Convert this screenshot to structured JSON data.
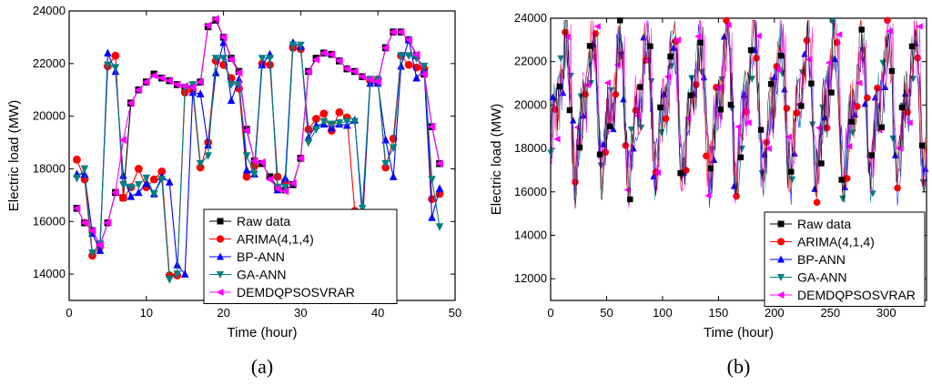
{
  "colors": {
    "raw": "#000000",
    "arima": "#ff0000",
    "bpann": "#0000ff",
    "gaann": "#008080",
    "dem": "#ff00ff"
  },
  "chart_data": [
    {
      "panel_label": "(a)",
      "type": "line",
      "xlabel": "Time (hour)",
      "ylabel": "Electric load (MW)",
      "xlim": [
        0,
        50
      ],
      "ylim": [
        13000,
        24000
      ],
      "xticks": [
        "0",
        "10",
        "20",
        "30",
        "40",
        "50"
      ],
      "yticks": [
        "14000",
        "16000",
        "18000",
        "20000",
        "22000",
        "24000"
      ],
      "legend_position": "bottom-right",
      "x": [
        1,
        2,
        3,
        4,
        5,
        6,
        7,
        8,
        9,
        10,
        11,
        12,
        13,
        14,
        15,
        16,
        17,
        18,
        19,
        20,
        21,
        22,
        23,
        24,
        25,
        26,
        27,
        28,
        29,
        30,
        31,
        32,
        33,
        34,
        35,
        36,
        37,
        38,
        39,
        40,
        41,
        42,
        43,
        44,
        45,
        46,
        47,
        48
      ],
      "series": [
        {
          "name": "Raw data",
          "key": "raw",
          "marker": "square",
          "values": [
            16500,
            15950,
            15650,
            15100,
            15950,
            17100,
            16900,
            20500,
            21000,
            21300,
            21600,
            21450,
            21350,
            21200,
            21100,
            21050,
            21300,
            23400,
            23650,
            23000,
            22200,
            21700,
            19500,
            18300,
            18200,
            17700,
            17300,
            17200,
            17400,
            18400,
            21700,
            22200,
            22400,
            22350,
            22100,
            21800,
            21700,
            21500,
            21400,
            21300,
            22600,
            23200,
            23200,
            22900,
            22300,
            21600,
            19600,
            18200
          ]
        },
        {
          "name": "ARIMA(4,1,4)",
          "key": "arima",
          "marker": "circle",
          "values": [
            18350,
            17600,
            14700,
            15050,
            21900,
            22300,
            16900,
            17300,
            18000,
            17300,
            17600,
            17900,
            13950,
            13950,
            20900,
            21000,
            18050,
            19000,
            22100,
            21950,
            21450,
            21050,
            17700,
            18100,
            22000,
            21950,
            17700,
            17500,
            22600,
            22550,
            19500,
            19900,
            20100,
            19450,
            20150,
            19950,
            16400,
            15800,
            21350,
            21400,
            18050,
            19150,
            22300,
            21950,
            21850,
            21800,
            16850,
            17050
          ]
        },
        {
          "name": "BP-ANN",
          "key": "bpann",
          "marker": "triangle-up",
          "values": [
            17800,
            17800,
            15550,
            14900,
            22400,
            21700,
            17750,
            16950,
            17100,
            17450,
            17050,
            17700,
            17500,
            14350,
            14000,
            20900,
            20850,
            18900,
            21650,
            22800,
            20600,
            21400,
            17950,
            17800,
            21950,
            22350,
            17200,
            17650,
            22800,
            22650,
            19200,
            19650,
            19700,
            19550,
            19700,
            19650,
            19850,
            16150,
            21250,
            21250,
            19100,
            17700,
            21900,
            22900,
            21450,
            21750,
            16150,
            17250
          ]
        },
        {
          "name": "GA-ANN",
          "key": "gaann",
          "marker": "triangle-down",
          "values": [
            17650,
            18000,
            14800,
            15150,
            21950,
            21850,
            17400,
            17300,
            17400,
            17650,
            17050,
            17600,
            13800,
            14000,
            21100,
            21200,
            18200,
            18500,
            22200,
            22200,
            21200,
            21200,
            18500,
            17800,
            22200,
            22200,
            17300,
            17300,
            22700,
            22700,
            19000,
            19500,
            19800,
            19700,
            19750,
            19800,
            19800,
            16500,
            21400,
            21400,
            18200,
            18800,
            22300,
            22300,
            22200,
            21900,
            17600,
            15800
          ]
        },
        {
          "name": "DEMDQPSOSVRAR",
          "key": "dem",
          "marker": "triangle-left",
          "values": [
            16500,
            15950,
            15650,
            15100,
            15950,
            17100,
            19100,
            20500,
            21000,
            21300,
            21550,
            21450,
            21350,
            21200,
            21150,
            21100,
            21300,
            23450,
            23700,
            23000,
            22150,
            21650,
            19450,
            18300,
            18250,
            17600,
            17250,
            17150,
            17450,
            18400,
            21700,
            22150,
            22400,
            22350,
            22100,
            21800,
            21700,
            21500,
            21400,
            21300,
            22600,
            23200,
            23200,
            22900,
            22350,
            21600,
            19600,
            18200
          ]
        }
      ]
    },
    {
      "panel_label": "(b)",
      "type": "line",
      "xlabel": "Time (hour)",
      "ylabel": "Electric load (MW)",
      "xlim": [
        0,
        336
      ],
      "ylim": [
        11000,
        24000
      ],
      "xticks": [
        "0",
        "50",
        "100",
        "150",
        "200",
        "250",
        "300"
      ],
      "yticks": [
        "12000",
        "14000",
        "16000",
        "18000",
        "20000",
        "22000",
        "24000"
      ],
      "legend_position": "bottom-right",
      "series_names": [
        "Raw data",
        "ARIMA(4,1,4)",
        "BP-ANN",
        "GA-ANN",
        "DEMDQPSOSVRAR"
      ]
    }
  ]
}
